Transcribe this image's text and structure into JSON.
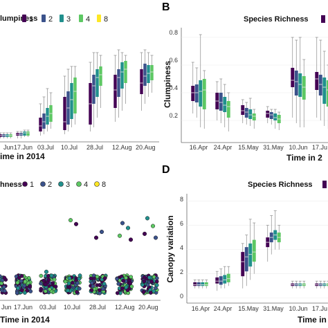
{
  "panels": {
    "a": {
      "legend_title": "lumpiness",
      "xlabel": "ime in 2014",
      "x_ticks": [
        "Jun",
        "17.Jun",
        "03.Jul",
        "10.Jul",
        "28.Jul",
        "12.Aug",
        "20.Aug"
      ]
    },
    "b": {
      "letter": "B",
      "legend_title": "Species Richness",
      "ylabel": "Clumpiness",
      "xlabel": "Time in 2",
      "y_ticks": [
        "0.2",
        "0.4",
        "0.6",
        "0.8"
      ],
      "x_ticks": [
        "16.Apr",
        "24.Apr",
        "15.May",
        "31.May",
        "10.Jun",
        "17.Ju"
      ]
    },
    "c": {
      "legend_title": "hness",
      "xlabel": "Time in 2014",
      "x_ticks": [
        "Jun",
        "17.Jun",
        "03.Jul",
        "10.Jul",
        "28.Jul",
        "12.Aug",
        "20.Aug"
      ]
    },
    "d": {
      "letter": "D",
      "legend_title": "Species Richness",
      "ylabel": "Canopy variation",
      "xlabel": "Time in 2",
      "y_ticks": [
        "0",
        "2",
        "4",
        "6",
        "8"
      ],
      "x_ticks": [
        "16.Apr",
        "24.Apr",
        "15.May",
        "31.May",
        "10.Jun",
        "17.Ju"
      ]
    }
  },
  "legend": {
    "labels": [
      "1",
      "2",
      "3",
      "4",
      "8"
    ],
    "colors": [
      "#440154",
      "#3b528b",
      "#21908d",
      "#5dc863",
      "#fde725"
    ]
  },
  "chart_data": [
    {
      "panel": "A",
      "type": "box",
      "ylabel": "",
      "ylim": [
        0,
        0.7
      ],
      "categories": [
        "Jun",
        "17.Jun",
        "03.Jul",
        "10.Jul",
        "28.Jul",
        "12.Aug",
        "20.Aug"
      ],
      "series": [
        {
          "name": "1",
          "boxes": [
            [
              0.0,
              0.01,
              0.02,
              0.03,
              0.04
            ],
            [
              0.0,
              0.02,
              0.03,
              0.04,
              0.05
            ],
            [
              0.02,
              0.05,
              0.09,
              0.15,
              0.25
            ],
            [
              0.03,
              0.06,
              0.12,
              0.3,
              0.45
            ],
            [
              0.05,
              0.1,
              0.25,
              0.4,
              0.55
            ],
            [
              0.12,
              0.22,
              0.35,
              0.46,
              0.6
            ],
            [
              0.2,
              0.32,
              0.4,
              0.5,
              0.62
            ]
          ]
        },
        {
          "name": "2",
          "boxes": [
            [
              0.0,
              0.01,
              0.02,
              0.03,
              0.04
            ],
            [
              0.0,
              0.02,
              0.03,
              0.04,
              0.05
            ],
            [
              0.03,
              0.07,
              0.12,
              0.18,
              0.3
            ],
            [
              0.05,
              0.1,
              0.22,
              0.34,
              0.5
            ],
            [
              0.08,
              0.25,
              0.38,
              0.46,
              0.62
            ],
            [
              0.15,
              0.3,
              0.44,
              0.5,
              0.64
            ],
            [
              0.25,
              0.38,
              0.45,
              0.54,
              0.64
            ]
          ]
        },
        {
          "name": "3",
          "boxes": [
            [
              0.0,
              0.01,
              0.02,
              0.03,
              0.04
            ],
            [
              0.01,
              0.02,
              0.04,
              0.05,
              0.06
            ],
            [
              0.05,
              0.1,
              0.16,
              0.22,
              0.36
            ],
            [
              0.08,
              0.14,
              0.28,
              0.4,
              0.52
            ],
            [
              0.15,
              0.3,
              0.44,
              0.5,
              0.62
            ],
            [
              0.2,
              0.36,
              0.48,
              0.55,
              0.62
            ],
            [
              0.3,
              0.4,
              0.47,
              0.53,
              0.62
            ]
          ]
        },
        {
          "name": "4",
          "boxes": [
            [
              0.0,
              0.01,
              0.02,
              0.03,
              0.04
            ],
            [
              0.01,
              0.02,
              0.04,
              0.05,
              0.06
            ],
            [
              0.07,
              0.12,
              0.18,
              0.24,
              0.33
            ],
            [
              0.1,
              0.18,
              0.34,
              0.44,
              0.52
            ],
            [
              0.22,
              0.38,
              0.46,
              0.52,
              0.6
            ],
            [
              0.25,
              0.4,
              0.5,
              0.56,
              0.6
            ],
            [
              0.33,
              0.42,
              0.48,
              0.53,
              0.6
            ]
          ]
        }
      ]
    },
    {
      "panel": "B",
      "type": "box",
      "ylabel": "Clumpiness",
      "ylim": [
        0.05,
        0.87
      ],
      "categories": [
        "16.Apr",
        "24.Apr",
        "15.May",
        "31.May",
        "10.Jun",
        "17.Ju"
      ],
      "series": [
        {
          "name": "1",
          "boxes": [
            [
              0.25,
              0.34,
              0.4,
              0.45,
              0.62
            ],
            [
              0.2,
              0.28,
              0.34,
              0.4,
              0.48
            ],
            [
              0.18,
              0.24,
              0.27,
              0.31,
              0.35
            ],
            [
              0.18,
              0.22,
              0.25,
              0.27,
              0.3
            ],
            [
              0.22,
              0.44,
              0.49,
              0.58,
              0.8
            ],
            [
              0.22,
              0.42,
              0.5,
              0.55,
              0.8
            ]
          ]
        },
        {
          "name": "2",
          "boxes": [
            [
              0.22,
              0.33,
              0.4,
              0.46,
              0.58
            ],
            [
              0.18,
              0.27,
              0.33,
              0.4,
              0.5
            ],
            [
              0.17,
              0.22,
              0.26,
              0.29,
              0.33
            ],
            [
              0.17,
              0.21,
              0.24,
              0.26,
              0.28
            ],
            [
              0.18,
              0.38,
              0.48,
              0.56,
              0.78
            ],
            [
              0.2,
              0.38,
              0.46,
              0.53,
              0.78
            ]
          ]
        },
        {
          "name": "3",
          "boxes": [
            [
              0.15,
              0.3,
              0.41,
              0.49,
              0.82
            ],
            [
              0.15,
              0.26,
              0.31,
              0.37,
              0.46
            ],
            [
              0.16,
              0.21,
              0.24,
              0.28,
              0.36
            ],
            [
              0.14,
              0.2,
              0.22,
              0.25,
              0.28
            ],
            [
              0.15,
              0.37,
              0.46,
              0.54,
              0.8
            ],
            [
              0.16,
              0.32,
              0.44,
              0.51,
              0.7
            ]
          ]
        },
        {
          "name": "4",
          "boxes": [
            [
              0.14,
              0.28,
              0.42,
              0.5,
              0.56
            ],
            [
              0.12,
              0.22,
              0.3,
              0.34,
              0.4
            ],
            [
              0.14,
              0.2,
              0.23,
              0.25,
              0.28
            ],
            [
              0.13,
              0.18,
              0.21,
              0.24,
              0.26
            ],
            [
              0.15,
              0.35,
              0.44,
              0.52,
              0.64
            ],
            [
              0.14,
              0.3,
              0.42,
              0.49,
              0.6
            ]
          ]
        }
      ]
    },
    {
      "panel": "C",
      "type": "scatter",
      "ylabel": "",
      "categories": [
        "Jun",
        "17.Jun",
        "03.Jul",
        "10.Jul",
        "28.Jul",
        "12.Aug",
        "20.Aug"
      ],
      "series_names": [
        "1",
        "2",
        "3",
        "4",
        "8"
      ],
      "outliers_y": [
        [],
        [],
        [
          0.25
        ],
        [
          0.78,
          0.74
        ],
        [
          0.6,
          0.66
        ],
        [
          0.75,
          0.7,
          0.62,
          0.58
        ],
        [
          0.8,
          0.72,
          0.64,
          0.6
        ]
      ]
    },
    {
      "panel": "D",
      "type": "box",
      "ylabel": "Canopy variation",
      "ylim": [
        -0.3,
        8.6
      ],
      "categories": [
        "16.Apr",
        "24.Apr",
        "15.May",
        "31.May",
        "10.Jun",
        "17.Ju"
      ],
      "series": [
        {
          "name": "1",
          "boxes": [
            [
              0.8,
              1.0,
              1.1,
              1.3,
              1.5
            ],
            [
              0.6,
              1.2,
              1.4,
              1.7,
              2.2
            ],
            [
              0.8,
              1.8,
              3.0,
              3.8,
              4.5
            ],
            [
              3.0,
              4.2,
              4.6,
              5.0,
              6.0
            ],
            [
              0.8,
              1.0,
              1.1,
              1.2,
              1.4
            ],
            [
              0.8,
              1.0,
              1.1,
              1.2,
              1.4
            ]
          ]
        },
        {
          "name": "2",
          "boxes": [
            [
              0.8,
              1.0,
              1.1,
              1.3,
              1.5
            ],
            [
              0.8,
              1.1,
              1.4,
              1.8,
              2.4
            ],
            [
              1.0,
              2.2,
              3.4,
              4.2,
              5.2
            ],
            [
              3.6,
              4.6,
              5.0,
              5.4,
              6.8
            ],
            [
              0.8,
              1.0,
              1.1,
              1.2,
              1.4
            ],
            [
              0.8,
              1.0,
              1.1,
              1.2,
              1.4
            ]
          ]
        },
        {
          "name": "3",
          "boxes": [
            [
              0.8,
              1.0,
              1.1,
              1.3,
              1.5
            ],
            [
              0.8,
              1.2,
              1.5,
              1.9,
              2.6
            ],
            [
              1.5,
              2.6,
              3.6,
              4.5,
              6.5
            ],
            [
              4.0,
              4.8,
              5.2,
              5.6,
              7.2
            ],
            [
              0.8,
              1.0,
              1.1,
              1.2,
              1.4
            ],
            [
              0.8,
              1.0,
              1.1,
              1.2,
              1.4
            ]
          ]
        },
        {
          "name": "4",
          "boxes": [
            [
              0.8,
              1.0,
              1.1,
              1.3,
              1.5
            ],
            [
              1.0,
              1.3,
              1.6,
              2.0,
              2.6
            ],
            [
              2.0,
              3.0,
              3.8,
              4.8,
              6.2
            ],
            [
              4.0,
              4.6,
              5.0,
              5.4,
              6.0
            ],
            [
              0.8,
              1.0,
              1.1,
              1.2,
              1.4
            ],
            [
              0.8,
              1.0,
              1.1,
              1.2,
              1.4
            ]
          ]
        }
      ]
    }
  ]
}
